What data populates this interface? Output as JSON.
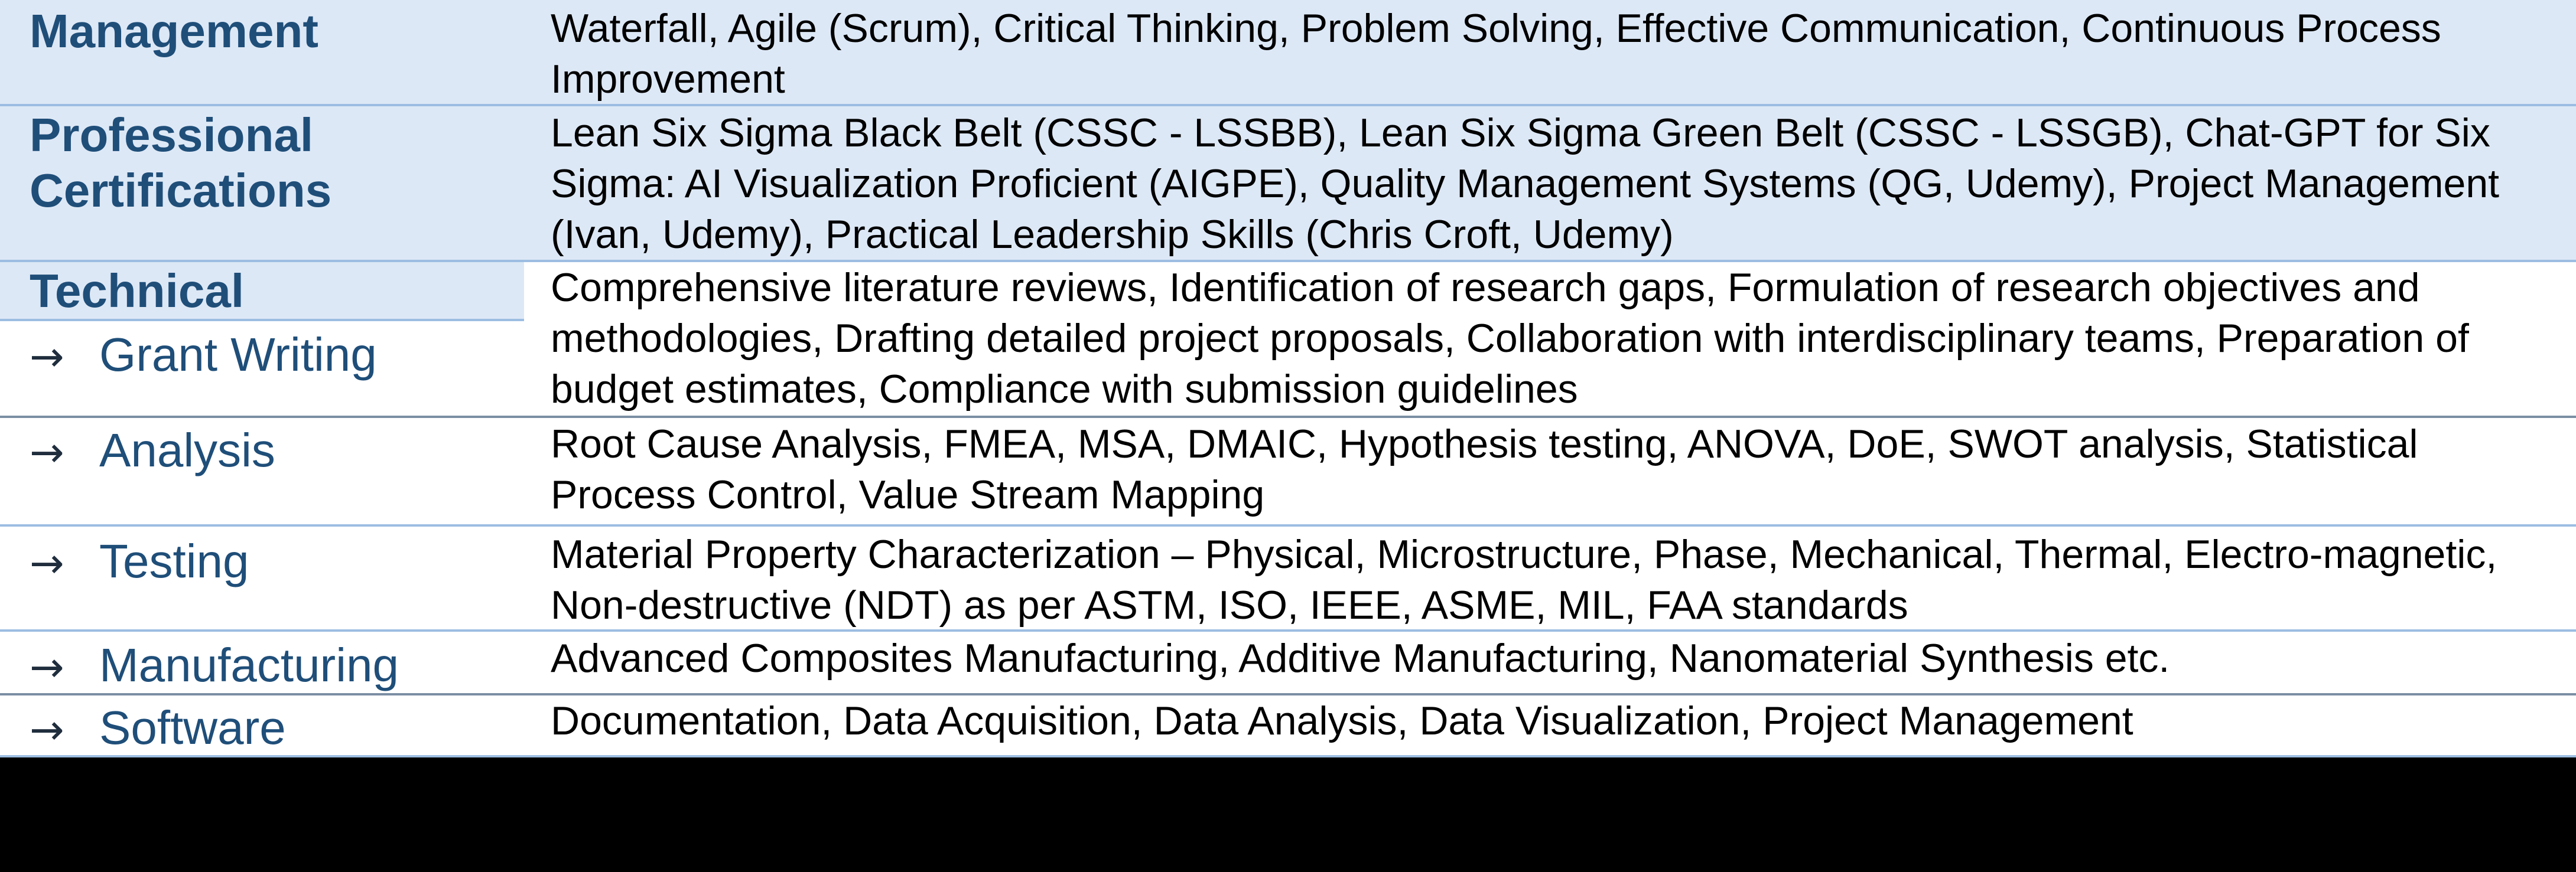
{
  "skills": {
    "management": {
      "label": "Management",
      "text": "Waterfall, Agile (Scrum), Critical Thinking, Problem Solving, Effective Communication, Continuous Process Improvement"
    },
    "certifications": {
      "label_line1": "Professional",
      "label_line2": "Certifications",
      "text": "Lean Six Sigma Black Belt (CSSC - LSSBB), Lean Six Sigma Green Belt (CSSC - LSSGB), Chat-GPT for Six Sigma: AI Visualization Proficient (AIGPE), Quality Management Systems (QG, Udemy), Project Management (Ivan, Udemy), Practical Leadership Skills (Chris Croft, Udemy)"
    },
    "technical": {
      "label": "Technical",
      "arrow": "→",
      "items": [
        {
          "label": "Grant Writing",
          "text": "Comprehensive literature reviews, Identification of research gaps, Formulation of research objectives and methodologies, Drafting detailed project proposals, Collaboration with interdisciplinary teams, Preparation of budget estimates, Compliance with submission guidelines"
        },
        {
          "label": "Analysis",
          "text": "Root Cause Analysis, FMEA, MSA, DMAIC, Hypothesis testing, ANOVA, DoE, SWOT analysis, Statistical Process Control, Value Stream Mapping"
        },
        {
          "label": "Testing",
          "text": "Material Property Characterization – Physical, Microstructure, Phase, Mechanical, Thermal, Electro-magnetic, Non-destructive (NDT) as per ASTM, ISO, IEEE, ASME, MIL, FAA standards"
        },
        {
          "label": "Manufacturing",
          "text": "Advanced Composites Manufacturing, Additive Manufacturing, Nanomaterial Synthesis etc."
        },
        {
          "label": "Software",
          "text": "Documentation, Data Acquisition, Data Analysis, Data Visualization, Project Management"
        }
      ]
    }
  },
  "colors": {
    "header_text": "#1f4e79",
    "shaded_row": "#dde8f6",
    "rule": "#9dbde2",
    "background": "#000000"
  }
}
